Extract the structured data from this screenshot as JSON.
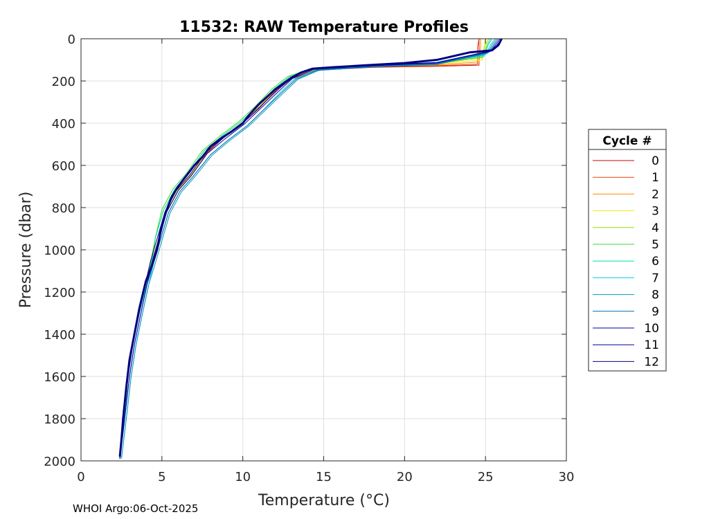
{
  "chart_data": {
    "type": "line",
    "title": "11532: RAW Temperature Profiles",
    "xlabel": "Temperature (°C)",
    "ylabel": "Pressure (dbar)",
    "xlim": [
      0,
      30
    ],
    "ylim": [
      2000,
      0
    ],
    "y_reversed": true,
    "grid": true,
    "x_ticks": [
      0,
      5,
      10,
      15,
      20,
      25,
      30
    ],
    "y_ticks": [
      0,
      200,
      400,
      600,
      800,
      1000,
      1200,
      1400,
      1600,
      1800,
      2000
    ],
    "legend": {
      "title": "Cycle #",
      "placement": "right-outside"
    },
    "series": [
      {
        "name": "0",
        "color": "#cc0000",
        "points": [
          [
            24.6,
            0
          ],
          [
            24.6,
            40
          ],
          [
            24.6,
            125
          ],
          [
            22,
            130
          ],
          [
            18,
            135
          ],
          [
            14.5,
            150
          ],
          [
            13,
            190
          ],
          [
            12,
            250
          ],
          [
            11,
            330
          ],
          [
            10,
            400
          ],
          [
            8.8,
            470
          ],
          [
            7.8,
            540
          ],
          [
            6.8,
            650
          ],
          [
            6,
            720
          ],
          [
            5.3,
            820
          ],
          [
            4.8,
            950
          ],
          [
            4.5,
            1050
          ],
          [
            4.1,
            1150
          ],
          [
            3.6,
            1300
          ],
          [
            3.2,
            1450
          ],
          [
            2.9,
            1600
          ],
          [
            2.7,
            1800
          ],
          [
            2.4,
            1990
          ]
        ]
      },
      {
        "name": "1",
        "color": "#ee4400",
        "points": [
          [
            24.6,
            0
          ],
          [
            24.5,
            40
          ],
          [
            24.5,
            120
          ],
          [
            22,
            128
          ],
          [
            18,
            133
          ],
          [
            14.5,
            148
          ],
          [
            13,
            188
          ],
          [
            12,
            248
          ],
          [
            11,
            328
          ],
          [
            10,
            398
          ],
          [
            8.8,
            468
          ],
          [
            7.8,
            538
          ],
          [
            6.8,
            648
          ],
          [
            6,
            718
          ],
          [
            5.3,
            818
          ],
          [
            4.8,
            948
          ],
          [
            4.4,
            1048
          ],
          [
            4,
            1150
          ],
          [
            3.6,
            1300
          ],
          [
            3.2,
            1450
          ],
          [
            2.9,
            1600
          ],
          [
            2.7,
            1800
          ],
          [
            2.4,
            1990
          ]
        ]
      },
      {
        "name": "2",
        "color": "#ff8800",
        "points": [
          [
            24.7,
            0
          ],
          [
            24.7,
            40
          ],
          [
            24.6,
            110
          ],
          [
            22,
            125
          ],
          [
            18,
            132
          ],
          [
            14.5,
            147
          ],
          [
            13,
            185
          ],
          [
            12,
            245
          ],
          [
            11,
            325
          ],
          [
            10,
            396
          ],
          [
            8.8,
            466
          ],
          [
            7.8,
            536
          ],
          [
            6.8,
            646
          ],
          [
            6,
            716
          ],
          [
            5.3,
            816
          ],
          [
            4.8,
            946
          ],
          [
            4.4,
            1046
          ],
          [
            4,
            1150
          ],
          [
            3.6,
            1300
          ],
          [
            3.2,
            1450
          ],
          [
            2.9,
            1600
          ],
          [
            2.7,
            1800
          ],
          [
            2.4,
            1990
          ]
        ]
      },
      {
        "name": "3",
        "color": "#f5e800",
        "points": [
          [
            25.0,
            0
          ],
          [
            24.9,
            40
          ],
          [
            24.8,
            100
          ],
          [
            22,
            122
          ],
          [
            18,
            130
          ],
          [
            14.5,
            145
          ],
          [
            13,
            182
          ],
          [
            12,
            243
          ],
          [
            11,
            323
          ],
          [
            10,
            394
          ],
          [
            8.8,
            464
          ],
          [
            7.8,
            534
          ],
          [
            6.8,
            644
          ],
          [
            6,
            714
          ],
          [
            5.3,
            814
          ],
          [
            4.8,
            944
          ],
          [
            4.4,
            1044
          ],
          [
            4,
            1150
          ],
          [
            3.6,
            1300
          ],
          [
            3.2,
            1450
          ],
          [
            2.9,
            1600
          ],
          [
            2.7,
            1800
          ],
          [
            2.4,
            1990
          ]
        ]
      },
      {
        "name": "4",
        "color": "#99dd00",
        "points": [
          [
            25.2,
            0
          ],
          [
            25.0,
            30
          ],
          [
            24.8,
            90
          ],
          [
            22,
            118
          ],
          [
            18,
            128
          ],
          [
            14.3,
            143
          ],
          [
            12.9,
            180
          ],
          [
            11.9,
            240
          ],
          [
            10.9,
            320
          ],
          [
            9.9,
            392
          ],
          [
            8.7,
            462
          ],
          [
            7.6,
            532
          ],
          [
            6.6,
            642
          ],
          [
            5.8,
            712
          ],
          [
            5.1,
            812
          ],
          [
            4.6,
            942
          ],
          [
            4.3,
            1060
          ],
          [
            4,
            1150
          ],
          [
            3.6,
            1300
          ],
          [
            3.2,
            1450
          ],
          [
            2.9,
            1600
          ],
          [
            2.7,
            1800
          ],
          [
            2.4,
            1990
          ]
        ]
      },
      {
        "name": "5",
        "color": "#33dd33",
        "points": [
          [
            25.3,
            0
          ],
          [
            25.1,
            30
          ],
          [
            24.9,
            85
          ],
          [
            22,
            115
          ],
          [
            18,
            126
          ],
          [
            14.2,
            142
          ],
          [
            12.8,
            178
          ],
          [
            11.8,
            238
          ],
          [
            10.8,
            318
          ],
          [
            9.8,
            390
          ],
          [
            8.6,
            460
          ],
          [
            7.5,
            530
          ],
          [
            6.5,
            640
          ],
          [
            5.7,
            710
          ],
          [
            5.0,
            810
          ],
          [
            4.6,
            940
          ],
          [
            4.3,
            1070
          ],
          [
            4,
            1160
          ],
          [
            3.6,
            1300
          ],
          [
            3.2,
            1450
          ],
          [
            2.9,
            1600
          ],
          [
            2.7,
            1800
          ],
          [
            2.4,
            1990
          ]
        ]
      },
      {
        "name": "6",
        "color": "#00ddaa",
        "points": [
          [
            25.4,
            0
          ],
          [
            25.2,
            25
          ],
          [
            24.9,
            80
          ],
          [
            22,
            112
          ],
          [
            18,
            125
          ],
          [
            14.3,
            142
          ],
          [
            12.9,
            180
          ],
          [
            11.9,
            240
          ],
          [
            10.9,
            320
          ],
          [
            9.9,
            392
          ],
          [
            8.7,
            462
          ],
          [
            7.6,
            532
          ],
          [
            6.6,
            642
          ],
          [
            5.8,
            712
          ],
          [
            5.1,
            812
          ],
          [
            4.6,
            942
          ],
          [
            4.4,
            1050
          ],
          [
            4.1,
            1150
          ],
          [
            3.6,
            1300
          ],
          [
            3.2,
            1450
          ],
          [
            2.9,
            1600
          ],
          [
            2.7,
            1800
          ],
          [
            2.4,
            1990
          ]
        ]
      },
      {
        "name": "7",
        "color": "#00ccee",
        "points": [
          [
            25.6,
            0
          ],
          [
            25.3,
            30
          ],
          [
            25,
            75
          ],
          [
            22,
            118
          ],
          [
            18,
            130
          ],
          [
            14.5,
            148
          ],
          [
            13.2,
            190
          ],
          [
            12.3,
            255
          ],
          [
            11.3,
            335
          ],
          [
            10.3,
            410
          ],
          [
            9.1,
            480
          ],
          [
            8,
            550
          ],
          [
            6.9,
            655
          ],
          [
            6.1,
            725
          ],
          [
            5.4,
            825
          ],
          [
            4.9,
            955
          ],
          [
            4.5,
            1060
          ],
          [
            4.2,
            1160
          ],
          [
            3.8,
            1300
          ],
          [
            3.4,
            1450
          ],
          [
            3.1,
            1600
          ],
          [
            2.8,
            1800
          ],
          [
            2.5,
            1990
          ]
        ]
      },
      {
        "name": "8",
        "color": "#0099bb",
        "points": [
          [
            25.7,
            0
          ],
          [
            25.4,
            30
          ],
          [
            25.1,
            70
          ],
          [
            22,
            122
          ],
          [
            18,
            133
          ],
          [
            14.7,
            150
          ],
          [
            13.4,
            192
          ],
          [
            12.5,
            258
          ],
          [
            11.4,
            338
          ],
          [
            10.4,
            412
          ],
          [
            9.2,
            482
          ],
          [
            8.1,
            552
          ],
          [
            7,
            657
          ],
          [
            6.2,
            727
          ],
          [
            5.5,
            827
          ],
          [
            5,
            957
          ],
          [
            4.6,
            1062
          ],
          [
            4.2,
            1162
          ],
          [
            3.8,
            1302
          ],
          [
            3.4,
            1452
          ],
          [
            3.1,
            1602
          ],
          [
            2.8,
            1802
          ],
          [
            2.5,
            1990
          ]
        ]
      },
      {
        "name": "9",
        "color": "#0066aa",
        "points": [
          [
            25.8,
            0
          ],
          [
            25.5,
            30
          ],
          [
            25.2,
            65
          ],
          [
            22,
            120
          ],
          [
            18,
            132
          ],
          [
            14.6,
            149
          ],
          [
            13.3,
            191
          ],
          [
            12.4,
            256
          ],
          [
            11.3,
            336
          ],
          [
            10.3,
            410
          ],
          [
            9.1,
            480
          ],
          [
            8,
            550
          ],
          [
            6.9,
            655
          ],
          [
            6.1,
            725
          ],
          [
            5.4,
            825
          ],
          [
            4.9,
            955
          ],
          [
            4.5,
            1060
          ],
          [
            4.1,
            1160
          ],
          [
            3.7,
            1300
          ],
          [
            3.3,
            1450
          ],
          [
            3,
            1600
          ],
          [
            2.7,
            1800
          ],
          [
            2.4,
            1990
          ]
        ]
      },
      {
        "name": "10",
        "color": "#0000aa",
        "points": [
          [
            25.9,
            0
          ],
          [
            25.6,
            30
          ],
          [
            25.3,
            60
          ],
          [
            22,
            115
          ],
          [
            18,
            128
          ],
          [
            14.4,
            145
          ],
          [
            13.1,
            186
          ],
          [
            12.2,
            250
          ],
          [
            11.1,
            330
          ],
          [
            10.1,
            404
          ],
          [
            8.9,
            474
          ],
          [
            7.8,
            544
          ],
          [
            6.8,
            650
          ],
          [
            6,
            720
          ],
          [
            5.3,
            820
          ],
          [
            4.8,
            950
          ],
          [
            4.4,
            1055
          ],
          [
            4.1,
            1155
          ],
          [
            3.7,
            1300
          ],
          [
            3.3,
            1450
          ],
          [
            3,
            1600
          ],
          [
            2.7,
            1800
          ],
          [
            2.4,
            1990
          ]
        ]
      },
      {
        "name": "11",
        "color": "#000099",
        "points": [
          [
            26,
            0
          ],
          [
            25.7,
            30
          ],
          [
            25.3,
            58
          ],
          [
            22,
            112
          ],
          [
            18,
            126
          ],
          [
            14.3,
            143
          ],
          [
            13,
            183
          ],
          [
            12.1,
            247
          ],
          [
            11,
            327
          ],
          [
            10,
            400
          ],
          [
            8.8,
            470
          ],
          [
            7.7,
            540
          ],
          [
            6.7,
            648
          ],
          [
            5.9,
            718
          ],
          [
            5.2,
            818
          ],
          [
            4.7,
            948
          ],
          [
            4.3,
            1052
          ],
          [
            4,
            1152
          ],
          [
            3.6,
            1300
          ],
          [
            3.2,
            1450
          ],
          [
            2.9,
            1600
          ],
          [
            2.6,
            1800
          ],
          [
            2.4,
            1990
          ]
        ]
      },
      {
        "name": "12",
        "color": "#000080",
        "points": [
          [
            26,
            0
          ],
          [
            25.8,
            30
          ],
          [
            25.4,
            55
          ],
          [
            24,
            65
          ],
          [
            22,
            100
          ],
          [
            20,
            115
          ],
          [
            18,
            124
          ],
          [
            15.5,
            135
          ],
          [
            14.3,
            142
          ],
          [
            13.6,
            160
          ],
          [
            13,
            185
          ],
          [
            12,
            240
          ],
          [
            11,
            310
          ],
          [
            10.4,
            360
          ],
          [
            10,
            400
          ],
          [
            9.3,
            440
          ],
          [
            8.7,
            470
          ],
          [
            8,
            510
          ],
          [
            7.5,
            560
          ],
          [
            7,
            600
          ],
          [
            6.5,
            650
          ],
          [
            6,
            700
          ],
          [
            5.6,
            750
          ],
          [
            5.2,
            830
          ],
          [
            4.9,
            920
          ],
          [
            4.7,
            1000
          ],
          [
            4.4,
            1070
          ],
          [
            4,
            1150
          ],
          [
            3.6,
            1280
          ],
          [
            3.3,
            1400
          ],
          [
            3,
            1520
          ],
          [
            2.8,
            1650
          ],
          [
            2.6,
            1800
          ],
          [
            2.5,
            1900
          ],
          [
            2.4,
            1980
          ]
        ]
      }
    ]
  },
  "footer": {
    "credit": "WHOI Argo:06-Oct-2025"
  }
}
